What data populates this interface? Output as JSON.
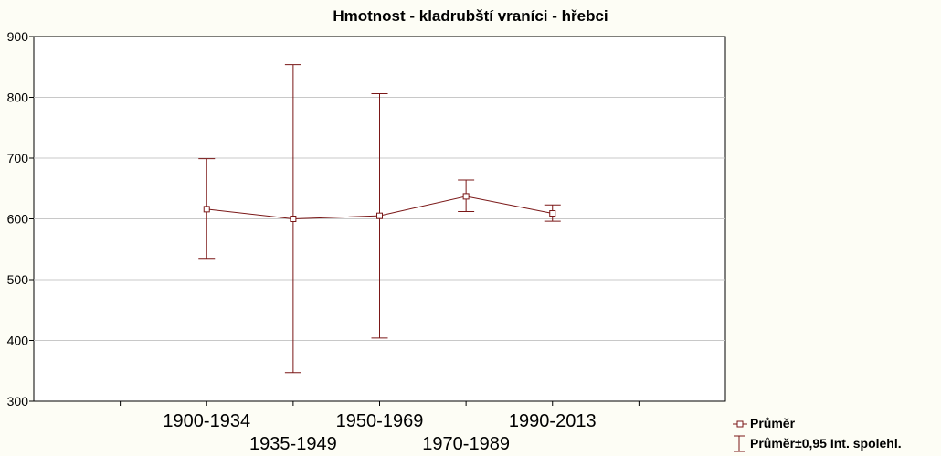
{
  "chart_data": {
    "type": "line",
    "title": "Hmotnost - kladrubští vraníci - hřebci",
    "xlabel": "",
    "ylabel": "",
    "categories": [
      "1900-1934",
      "1935-1949",
      "1950-1969",
      "1970-1989",
      "1990-2013"
    ],
    "series": [
      {
        "name": "Průměr",
        "values": [
          616,
          600,
          605,
          637,
          609
        ],
        "ci_lower": [
          535,
          347,
          404,
          612,
          596
        ],
        "ci_upper": [
          699,
          854,
          806,
          664,
          623
        ]
      }
    ],
    "ylim": [
      300,
      900
    ],
    "yticks": [
      300,
      400,
      500,
      600,
      700,
      800,
      900
    ],
    "grid": true,
    "legend": {
      "placement": "bottom-right",
      "entries": [
        "Průměr",
        "Průměr±0,95 Int. spolehl."
      ]
    },
    "colors": {
      "series": "#7a1717",
      "grid": "#c8c8c8",
      "background": "#fdfdf5",
      "plot_background": "#ffffff"
    }
  }
}
